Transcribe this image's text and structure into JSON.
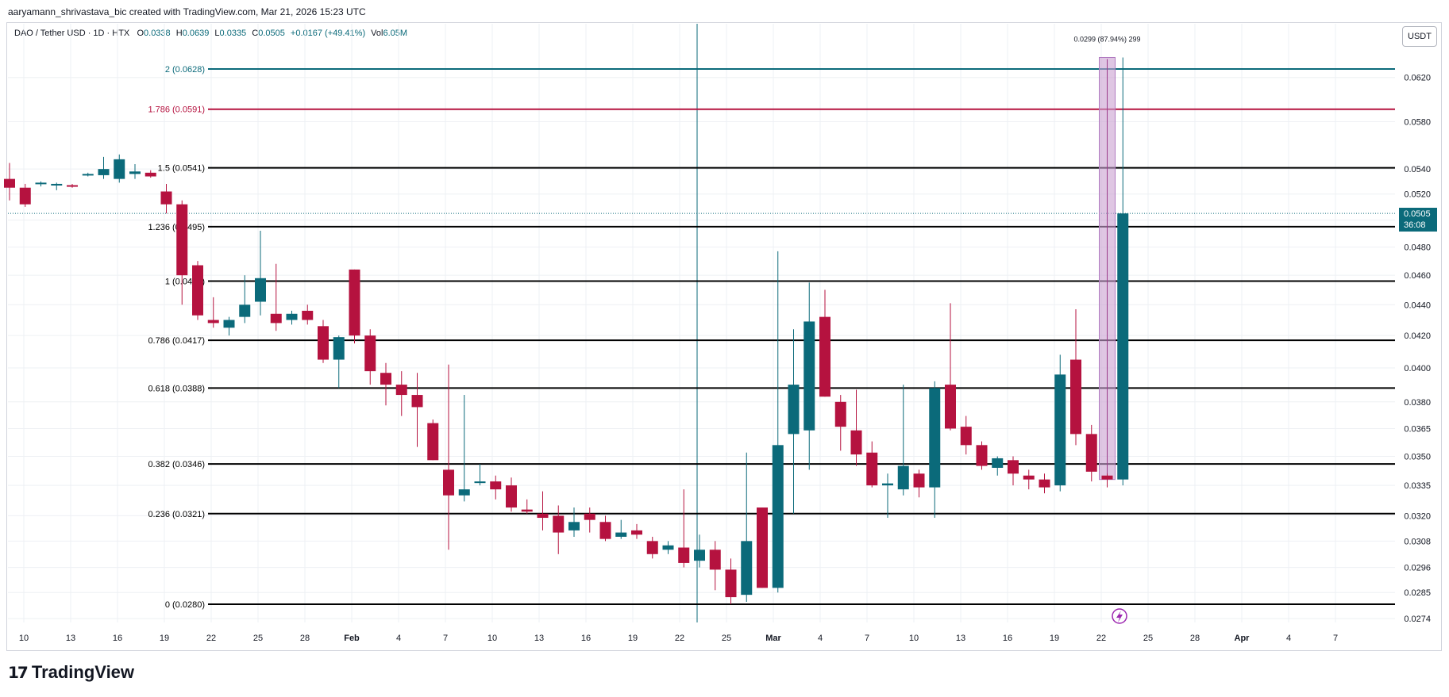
{
  "header": {
    "attribution": "aaryamann_shrivastava_bic created with TradingView.com, Mar 21, 2026 15:23 UTC",
    "symbol": "DAO / Tether USD · 1D · HTX",
    "open_label": "O",
    "open": "0.0338",
    "high_label": "H",
    "high": "0.0639",
    "low_label": "L",
    "low": "0.0335",
    "close_label": "C",
    "close": "0.0505",
    "change": "+0.0167 (+49.41%)",
    "vol_label": "Vol",
    "vol": "6.05M"
  },
  "currency_button": "USDT",
  "last_price": {
    "value": "0.0505",
    "countdown": "36:08"
  },
  "logo_text": "TradingView",
  "colors": {
    "up": "#0b6a7a",
    "down": "#b5123f",
    "fib": "#000000",
    "fib2": "#0b6a7a",
    "fib1786": "#b5123f",
    "measure": "#c9a0d0"
  },
  "chart_data": {
    "type": "candlestick",
    "x_ticks": [
      "10",
      "13",
      "16",
      "19",
      "22",
      "25",
      "28",
      "Feb",
      "4",
      "7",
      "10",
      "13",
      "16",
      "19",
      "22",
      "25",
      "Mar",
      "4",
      "7",
      "10",
      "13",
      "16",
      "19",
      "22",
      "25",
      "28",
      "Apr",
      "4",
      "7"
    ],
    "y_ticks": [
      "0.0620",
      "0.0580",
      "0.0540",
      "0.0520",
      "0.0500",
      "0.0480",
      "0.0460",
      "0.0440",
      "0.0420",
      "0.0400",
      "0.0380",
      "0.0365",
      "0.0350",
      "0.0335",
      "0.0320",
      "0.0308",
      "0.0296",
      "0.0285",
      "0.0274"
    ],
    "y_scale": "log",
    "fib_levels": [
      {
        "label": "2 (0.0628)",
        "price": 0.0628,
        "color": "#0b6a7a"
      },
      {
        "label": "1.786 (0.0591)",
        "price": 0.0591,
        "color": "#b5123f"
      },
      {
        "label": "1.5 (0.0541)",
        "price": 0.0541,
        "color": "#000000"
      },
      {
        "label": "1.236 (0.0495)",
        "price": 0.0495,
        "color": "#000000"
      },
      {
        "label": "1 (0.0456)",
        "price": 0.0456,
        "color": "#000000"
      },
      {
        "label": "0.786 (0.0417)",
        "price": 0.0417,
        "color": "#000000"
      },
      {
        "label": "0.618 (0.0388)",
        "price": 0.0388,
        "color": "#000000"
      },
      {
        "label": "0.382 (0.0346)",
        "price": 0.0346,
        "color": "#000000"
      },
      {
        "label": "0.236 (0.0321)",
        "price": 0.0321,
        "color": "#000000"
      },
      {
        "label": "0 (0.0280)",
        "price": 0.028,
        "color": "#000000"
      }
    ],
    "measurement_label": "0.0299 (87.94%) 299",
    "candles": [
      {
        "o": 0.0532,
        "h": 0.0545,
        "l": 0.0515,
        "c": 0.0525
      },
      {
        "o": 0.0525,
        "h": 0.0528,
        "l": 0.051,
        "c": 0.0512
      },
      {
        "o": 0.0528,
        "h": 0.053,
        "l": 0.0526,
        "c": 0.0529
      },
      {
        "o": 0.0527,
        "h": 0.0529,
        "l": 0.0523,
        "c": 0.0528
      },
      {
        "o": 0.0527,
        "h": 0.0528,
        "l": 0.0525,
        "c": 0.0526
      },
      {
        "o": 0.0535,
        "h": 0.0537,
        "l": 0.0534,
        "c": 0.0536
      },
      {
        "o": 0.0535,
        "h": 0.055,
        "l": 0.0532,
        "c": 0.054
      },
      {
        "o": 0.0532,
        "h": 0.0552,
        "l": 0.0529,
        "c": 0.0548
      },
      {
        "o": 0.0536,
        "h": 0.0544,
        "l": 0.0532,
        "c": 0.0538
      },
      {
        "o": 0.0537,
        "h": 0.0539,
        "l": 0.0533,
        "c": 0.0534
      },
      {
        "o": 0.0522,
        "h": 0.0528,
        "l": 0.0505,
        "c": 0.0512
      },
      {
        "o": 0.0512,
        "h": 0.0515,
        "l": 0.044,
        "c": 0.046
      },
      {
        "o": 0.0467,
        "h": 0.047,
        "l": 0.043,
        "c": 0.0433
      },
      {
        "o": 0.043,
        "h": 0.0445,
        "l": 0.0425,
        "c": 0.0428
      },
      {
        "o": 0.0425,
        "h": 0.0432,
        "l": 0.042,
        "c": 0.043
      },
      {
        "o": 0.0432,
        "h": 0.046,
        "l": 0.0428,
        "c": 0.044
      },
      {
        "o": 0.0442,
        "h": 0.0492,
        "l": 0.0433,
        "c": 0.0458
      },
      {
        "o": 0.0434,
        "h": 0.0468,
        "l": 0.0423,
        "c": 0.0428
      },
      {
        "o": 0.043,
        "h": 0.0436,
        "l": 0.0427,
        "c": 0.0434
      },
      {
        "o": 0.0436,
        "h": 0.044,
        "l": 0.0427,
        "c": 0.043
      },
      {
        "o": 0.0426,
        "h": 0.043,
        "l": 0.0403,
        "c": 0.0405
      },
      {
        "o": 0.0405,
        "h": 0.042,
        "l": 0.0388,
        "c": 0.0419
      },
      {
        "o": 0.0464,
        "h": 0.0464,
        "l": 0.0415,
        "c": 0.042
      },
      {
        "o": 0.042,
        "h": 0.0424,
        "l": 0.039,
        "c": 0.0398
      },
      {
        "o": 0.0397,
        "h": 0.0403,
        "l": 0.0378,
        "c": 0.039
      },
      {
        "o": 0.039,
        "h": 0.0398,
        "l": 0.0372,
        "c": 0.0384
      },
      {
        "o": 0.0384,
        "h": 0.0397,
        "l": 0.0355,
        "c": 0.0377
      },
      {
        "o": 0.0368,
        "h": 0.037,
        "l": 0.0348,
        "c": 0.0348
      },
      {
        "o": 0.0343,
        "h": 0.0402,
        "l": 0.0304,
        "c": 0.033
      },
      {
        "o": 0.033,
        "h": 0.0384,
        "l": 0.0327,
        "c": 0.0333
      },
      {
        "o": 0.0337,
        "h": 0.0346,
        "l": 0.0335,
        "c": 0.0337
      },
      {
        "o": 0.0337,
        "h": 0.034,
        "l": 0.0328,
        "c": 0.0333
      },
      {
        "o": 0.0335,
        "h": 0.0339,
        "l": 0.0322,
        "c": 0.0324
      },
      {
        "o": 0.0323,
        "h": 0.0328,
        "l": 0.0321,
        "c": 0.0322
      },
      {
        "o": 0.0321,
        "h": 0.0332,
        "l": 0.0313,
        "c": 0.0319
      },
      {
        "o": 0.032,
        "h": 0.0325,
        "l": 0.0302,
        "c": 0.0312
      },
      {
        "o": 0.0313,
        "h": 0.0324,
        "l": 0.031,
        "c": 0.0317
      },
      {
        "o": 0.0321,
        "h": 0.0324,
        "l": 0.0312,
        "c": 0.0318
      },
      {
        "o": 0.0317,
        "h": 0.032,
        "l": 0.0308,
        "c": 0.0309
      },
      {
        "o": 0.031,
        "h": 0.0318,
        "l": 0.0309,
        "c": 0.0312
      },
      {
        "o": 0.0313,
        "h": 0.0316,
        "l": 0.0309,
        "c": 0.0311
      },
      {
        "o": 0.0308,
        "h": 0.031,
        "l": 0.03,
        "c": 0.0302
      },
      {
        "o": 0.0304,
        "h": 0.0308,
        "l": 0.0302,
        "c": 0.0306
      },
      {
        "o": 0.0305,
        "h": 0.0333,
        "l": 0.0296,
        "c": 0.0298
      },
      {
        "o": 0.0299,
        "h": 0.0311,
        "l": 0.0296,
        "c": 0.0304
      },
      {
        "o": 0.0304,
        "h": 0.0308,
        "l": 0.0286,
        "c": 0.0295
      },
      {
        "o": 0.0295,
        "h": 0.03,
        "l": 0.028,
        "c": 0.0283
      },
      {
        "o": 0.0284,
        "h": 0.0352,
        "l": 0.0281,
        "c": 0.0308
      },
      {
        "o": 0.0324,
        "h": 0.0324,
        "l": 0.0287,
        "c": 0.0287
      },
      {
        "o": 0.0287,
        "h": 0.0477,
        "l": 0.0285,
        "c": 0.0356
      },
      {
        "o": 0.0362,
        "h": 0.0424,
        "l": 0.0321,
        "c": 0.039
      },
      {
        "o": 0.0364,
        "h": 0.0455,
        "l": 0.0343,
        "c": 0.0429
      },
      {
        "o": 0.0432,
        "h": 0.045,
        "l": 0.0383,
        "c": 0.0383
      },
      {
        "o": 0.038,
        "h": 0.0384,
        "l": 0.0353,
        "c": 0.0366
      },
      {
        "o": 0.0364,
        "h": 0.0387,
        "l": 0.0345,
        "c": 0.0351
      },
      {
        "o": 0.0352,
        "h": 0.0358,
        "l": 0.0334,
        "c": 0.0335
      },
      {
        "o": 0.0335,
        "h": 0.0341,
        "l": 0.0319,
        "c": 0.0336
      },
      {
        "o": 0.0333,
        "h": 0.039,
        "l": 0.033,
        "c": 0.0345
      },
      {
        "o": 0.0341,
        "h": 0.0343,
        "l": 0.0329,
        "c": 0.0334
      },
      {
        "o": 0.0334,
        "h": 0.0392,
        "l": 0.0319,
        "c": 0.0388
      },
      {
        "o": 0.039,
        "h": 0.0441,
        "l": 0.0364,
        "c": 0.0365
      },
      {
        "o": 0.0366,
        "h": 0.0372,
        "l": 0.0351,
        "c": 0.0356
      },
      {
        "o": 0.0356,
        "h": 0.0358,
        "l": 0.0343,
        "c": 0.0345
      },
      {
        "o": 0.0344,
        "h": 0.035,
        "l": 0.034,
        "c": 0.0349
      },
      {
        "o": 0.0348,
        "h": 0.035,
        "l": 0.0335,
        "c": 0.0341
      },
      {
        "o": 0.034,
        "h": 0.0343,
        "l": 0.0333,
        "c": 0.0338
      },
      {
        "o": 0.0338,
        "h": 0.0341,
        "l": 0.0331,
        "c": 0.0334
      },
      {
        "o": 0.0335,
        "h": 0.0408,
        "l": 0.0332,
        "c": 0.0396
      },
      {
        "o": 0.0405,
        "h": 0.0437,
        "l": 0.0356,
        "c": 0.0362
      },
      {
        "o": 0.0362,
        "h": 0.0367,
        "l": 0.0337,
        "c": 0.0342
      },
      {
        "o": 0.034,
        "h": 0.0341,
        "l": 0.0334,
        "c": 0.0338
      },
      {
        "o": 0.0338,
        "h": 0.0639,
        "l": 0.0335,
        "c": 0.0505
      }
    ]
  }
}
